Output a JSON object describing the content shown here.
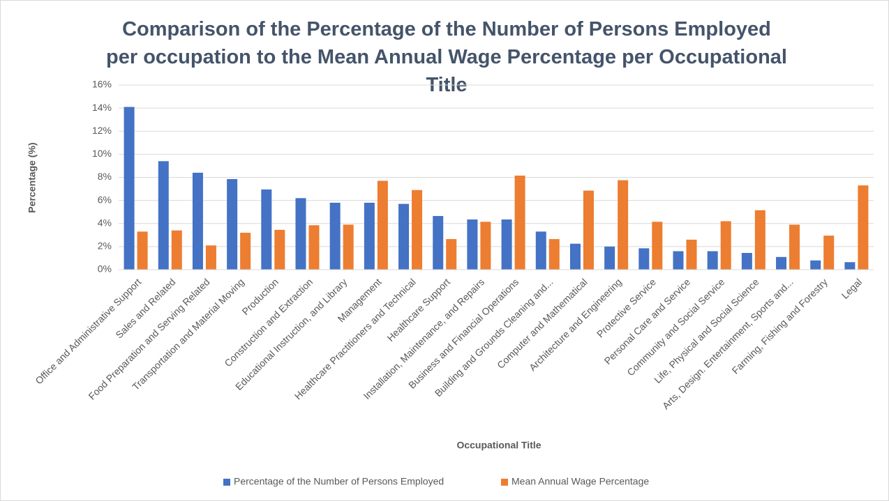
{
  "chart_data": {
    "type": "bar",
    "title": "Comparison of the Percentage of the Number of Persons Employed per occupation to the Mean Annual Wage Percentage per Occupational Title",
    "x_label": "Occupational Title",
    "y_label": "Percentage (%)",
    "categories": [
      "Office and Administrative Support",
      "Sales and Related",
      "Food Preparation and Serving Related",
      "Transportation and Material Moving",
      "Production",
      "Construction and Extraction",
      "Educational Instruction, and Library",
      "Management",
      "Healthcare Practitioners and Technical",
      "Healthcare Support",
      "Installation, Maintenance, and Repairs",
      "Business and Financial Operations",
      "Building and Grounds Cleaning and...",
      "Computer and Mathematical",
      "Architecture and Engineering",
      "Protective Service",
      "Personal Care and Service",
      "Community and Social Service",
      "Life, Physical and Social Science",
      "Arts, Design. Entertainment, Sports and...",
      "Farming, Fishing and Forestry",
      "Legal"
    ],
    "series": [
      {
        "name": "Percentage of the Number of Persons Employed",
        "color": "#4472c4",
        "values": [
          14.1,
          9.4,
          8.4,
          7.85,
          6.95,
          6.2,
          5.8,
          5.8,
          5.7,
          4.65,
          4.35,
          4.35,
          3.3,
          2.25,
          2.0,
          1.85,
          1.6,
          1.6,
          1.45,
          1.1,
          0.8,
          0.65
        ]
      },
      {
        "name": "Mean Annual Wage Percentage",
        "color": "#ed7d31",
        "values": [
          3.3,
          3.4,
          2.1,
          3.2,
          3.45,
          3.85,
          3.9,
          7.7,
          6.9,
          2.65,
          4.15,
          8.15,
          2.65,
          6.85,
          7.75,
          4.15,
          2.6,
          4.2,
          5.15,
          3.9,
          2.95,
          7.3
        ]
      }
    ],
    "ylim": [
      0,
      16
    ],
    "yticks": [
      {
        "value": 0,
        "label": "0%"
      },
      {
        "value": 2,
        "label": "2%"
      },
      {
        "value": 4,
        "label": "4%"
      },
      {
        "value": 6,
        "label": "6%"
      },
      {
        "value": 8,
        "label": "8%"
      },
      {
        "value": 10,
        "label": "10%"
      },
      {
        "value": 12,
        "label": "12%"
      },
      {
        "value": 14,
        "label": "14%"
      },
      {
        "value": 16,
        "label": "16%"
      }
    ],
    "grid": true,
    "legend": "bottom"
  }
}
